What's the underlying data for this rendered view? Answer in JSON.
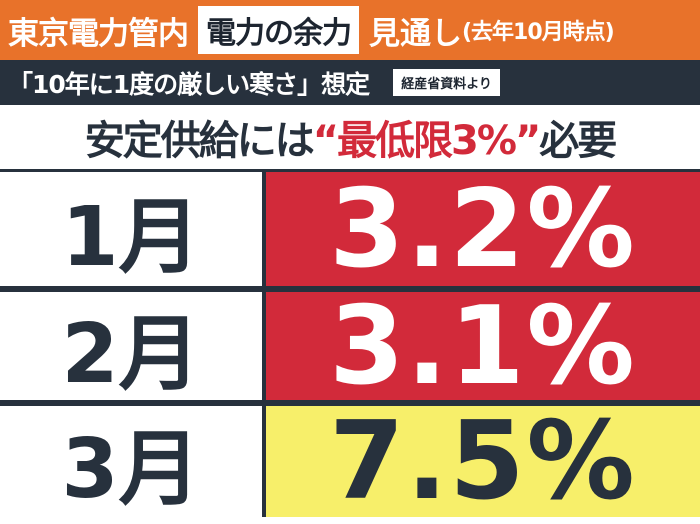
{
  "header": {
    "area": "東京電力管内",
    "badge": "電力の余力",
    "title": "見通し",
    "note": "(去年10月時点)"
  },
  "subheader": {
    "text": "「10年に1度の厳しい寒さ」想定",
    "source": "経産省資料より"
  },
  "headline": {
    "before": "安定供給には",
    "emphasis": "“最低限3%”",
    "after": "必要"
  },
  "table": {
    "rows": [
      [
        "1月",
        "3.2%"
      ],
      [
        "2月",
        "3.1%"
      ],
      [
        "3月",
        "7.5%"
      ]
    ]
  }
}
